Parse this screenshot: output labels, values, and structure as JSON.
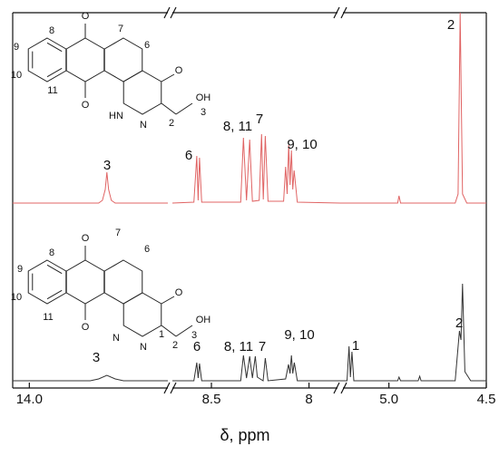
{
  "chart_data": {
    "type": "line",
    "x_label": "δ, ppm",
    "xlims": [
      [
        14.3,
        11.5
      ],
      [
        8.7,
        7.84
      ],
      [
        5.25,
        4.5
      ]
    ],
    "xticks": [
      {
        "value": 14,
        "label": "14.0"
      },
      8.5,
      8,
      {
        "value": 5,
        "label": "5.0"
      },
      4.5
    ],
    "series": [
      {
        "color": "#e06464",
        "x": [
          14.3,
          12.75,
          12.68,
          12.63,
          12.6,
          12.57,
          12.52,
          12.45,
          11.5,
          null,
          8.7,
          8.59,
          8.575,
          8.568,
          8.561,
          8.55,
          8.35,
          8.336,
          8.32,
          8.304,
          8.29,
          8.255,
          8.243,
          8.234,
          8.224,
          8.21,
          8.13,
          8.12,
          8.112,
          8.104,
          8.097,
          8.09,
          8.083,
          8.076,
          8.06,
          7.84,
          null,
          5.25,
          4.955,
          4.948,
          4.94,
          4.66,
          4.645,
          4.634,
          4.622,
          4.6,
          4.5
        ],
        "values": [
          0,
          0,
          3,
          15,
          34,
          15,
          3,
          0,
          0,
          null,
          0,
          1,
          52,
          3,
          50,
          1,
          1,
          72,
          3,
          70,
          2,
          3,
          76,
          4,
          74,
          2,
          2,
          40,
          10,
          64,
          20,
          58,
          15,
          36,
          1,
          0,
          null,
          0,
          0,
          8,
          0,
          0,
          10,
          210,
          10,
          0,
          0
        ],
        "peak_labels": [
          "2",
          "3",
          "6",
          "8, 11",
          "7",
          "9, 10"
        ]
      },
      {
        "color": "#333333",
        "x": [
          14.3,
          12.9,
          12.75,
          12.6,
          12.45,
          12.3,
          11.5,
          null,
          8.7,
          8.59,
          8.575,
          8.568,
          8.561,
          8.55,
          8.35,
          8.336,
          8.32,
          8.304,
          8.29,
          8.275,
          8.265,
          8.235,
          8.224,
          8.21,
          8.12,
          8.105,
          8.097,
          8.09,
          8.083,
          8.075,
          8.06,
          7.84,
          null,
          5.25,
          5.215,
          5.205,
          5.198,
          5.19,
          5.18,
          4.955,
          4.948,
          4.94,
          4.85,
          4.842,
          4.835,
          4.66,
          4.638,
          4.63,
          4.622,
          4.61,
          4.58,
          4.5
        ],
        "values": [
          0,
          0,
          2,
          6,
          2,
          0,
          0,
          null,
          0,
          0,
          20,
          3,
          19,
          0,
          0,
          28,
          3,
          27,
          3,
          27,
          4,
          0,
          25,
          0,
          2,
          18,
          8,
          28,
          8,
          20,
          0,
          0,
          null,
          0,
          0,
          38,
          4,
          32,
          0,
          0,
          4,
          0,
          0,
          5,
          0,
          0,
          55,
          45,
          107,
          10,
          0,
          0
        ],
        "peak_labels": [
          "3",
          "6",
          "8, 11",
          "7",
          "9, 10",
          "1",
          "2"
        ]
      }
    ]
  },
  "structures": [
    {
      "atoms": [
        "O",
        "O",
        "O",
        "HN",
        "N",
        "OH"
      ],
      "numbers": [
        "8",
        "7",
        "6",
        "9",
        "10",
        "11",
        "2",
        "3"
      ]
    },
    {
      "atoms": [
        "O",
        "O",
        "O",
        "N",
        "N",
        "OH"
      ],
      "numbers": [
        "8",
        "7",
        "6",
        "9",
        "10",
        "11",
        "1",
        "2",
        "3"
      ]
    }
  ]
}
